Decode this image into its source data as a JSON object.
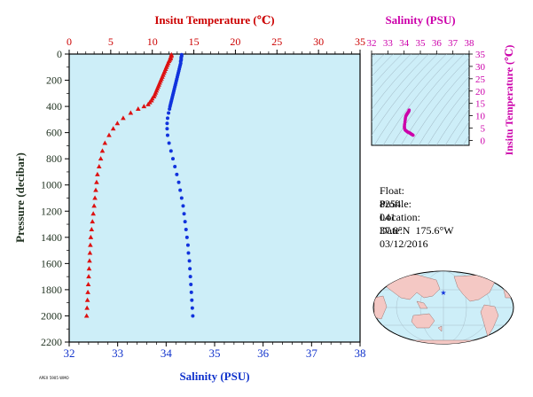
{
  "float_info": {
    "float_label": "Float:",
    "float_value": "8254",
    "profile_label": "Profile:",
    "profile_value": "041",
    "location_label": "Location:",
    "location_value": "37.8°N  175.6°W",
    "date_label": "Date:",
    "date_value": "03/12/2016"
  },
  "footer_tag": "APEX 5905 WMO",
  "colors": {
    "plot_bg": "#cdeef8",
    "temperature": "#dd1111",
    "salinity": "#1133dd",
    "ts_magenta": "#cc00aa",
    "temp_axis_text": "#cc0000",
    "salinity_axis_text": "#1133cc",
    "pressure_axis_text": "#223322",
    "land": "#f4c8c4",
    "ocean": "#cdeef8"
  },
  "chart_data": [
    {
      "type": "scatter",
      "name": "profile",
      "xlabel_bottom": "Salinity (PSU)",
      "xlabel_top": "Insitu Temperature (℃)",
      "ylabel": "Pressure (decibar)",
      "salinity_ticks": [
        "32",
        "33",
        "34",
        "35",
        "36",
        "37",
        "38"
      ],
      "temperature_ticks": [
        "0",
        "5",
        "10",
        "15",
        "20",
        "25",
        "30",
        "35"
      ],
      "pressure_ticks": [
        "0",
        "200",
        "400",
        "600",
        "800",
        "1000",
        "1200",
        "1400",
        "1600",
        "1800",
        "2000",
        "2200"
      ],
      "xlim_salinity": [
        32,
        38
      ],
      "xlim_temperature": [
        0,
        35
      ],
      "ylim_pressure": [
        2200,
        0
      ],
      "series": [
        {
          "name": "Temperature",
          "marker": "triangle",
          "x_is": "temperature",
          "points": [
            [
              12.3,
              5
            ],
            [
              12.3,
              15
            ],
            [
              12.2,
              25
            ],
            [
              12.2,
              35
            ],
            [
              12.1,
              45
            ],
            [
              12.0,
              55
            ],
            [
              11.9,
              70
            ],
            [
              11.8,
              85
            ],
            [
              11.7,
              100
            ],
            [
              11.6,
              115
            ],
            [
              11.5,
              130
            ],
            [
              11.4,
              145
            ],
            [
              11.3,
              160
            ],
            [
              11.2,
              175
            ],
            [
              11.1,
              190
            ],
            [
              11.0,
              205
            ],
            [
              10.9,
              220
            ],
            [
              10.8,
              235
            ],
            [
              10.7,
              250
            ],
            [
              10.6,
              265
            ],
            [
              10.5,
              280
            ],
            [
              10.4,
              295
            ],
            [
              10.3,
              310
            ],
            [
              10.2,
              325
            ],
            [
              10.0,
              340
            ],
            [
              9.9,
              355
            ],
            [
              9.7,
              370
            ],
            [
              9.5,
              385
            ],
            [
              9.0,
              400
            ],
            [
              8.3,
              420
            ],
            [
              7.4,
              450
            ],
            [
              6.5,
              490
            ],
            [
              5.8,
              530
            ],
            [
              5.3,
              570
            ],
            [
              4.8,
              620
            ],
            [
              4.3,
              680
            ],
            [
              4.0,
              740
            ],
            [
              3.8,
              800
            ],
            [
              3.6,
              860
            ],
            [
              3.4,
              920
            ],
            [
              3.3,
              980
            ],
            [
              3.2,
              1040
            ],
            [
              3.1,
              1100
            ],
            [
              3.0,
              1160
            ],
            [
              2.9,
              1220
            ],
            [
              2.8,
              1280
            ],
            [
              2.7,
              1340
            ],
            [
              2.6,
              1400
            ],
            [
              2.55,
              1460
            ],
            [
              2.5,
              1520
            ],
            [
              2.45,
              1580
            ],
            [
              2.4,
              1640
            ],
            [
              2.35,
              1700
            ],
            [
              2.3,
              1760
            ],
            [
              2.25,
              1820
            ],
            [
              2.2,
              1880
            ],
            [
              2.15,
              1940
            ],
            [
              2.1,
              2000
            ]
          ]
        },
        {
          "name": "Salinity",
          "marker": "circle",
          "x_is": "salinity",
          "points": [
            [
              34.32,
              5
            ],
            [
              34.32,
              15
            ],
            [
              34.31,
              25
            ],
            [
              34.31,
              35
            ],
            [
              34.31,
              45
            ],
            [
              34.3,
              55
            ],
            [
              34.3,
              70
            ],
            [
              34.29,
              85
            ],
            [
              34.28,
              100
            ],
            [
              34.27,
              115
            ],
            [
              34.26,
              130
            ],
            [
              34.25,
              145
            ],
            [
              34.24,
              160
            ],
            [
              34.23,
              175
            ],
            [
              34.22,
              190
            ],
            [
              34.21,
              205
            ],
            [
              34.2,
              220
            ],
            [
              34.19,
              235
            ],
            [
              34.18,
              250
            ],
            [
              34.17,
              265
            ],
            [
              34.16,
              280
            ],
            [
              34.15,
              295
            ],
            [
              34.14,
              310
            ],
            [
              34.13,
              325
            ],
            [
              34.12,
              340
            ],
            [
              34.11,
              355
            ],
            [
              34.1,
              370
            ],
            [
              34.09,
              385
            ],
            [
              34.08,
              400
            ],
            [
              34.07,
              420
            ],
            [
              34.05,
              450
            ],
            [
              34.03,
              490
            ],
            [
              34.02,
              530
            ],
            [
              34.02,
              570
            ],
            [
              34.03,
              620
            ],
            [
              34.06,
              680
            ],
            [
              34.1,
              740
            ],
            [
              34.14,
              800
            ],
            [
              34.18,
              860
            ],
            [
              34.22,
              920
            ],
            [
              34.26,
              980
            ],
            [
              34.29,
              1040
            ],
            [
              34.32,
              1100
            ],
            [
              34.35,
              1160
            ],
            [
              34.37,
              1220
            ],
            [
              34.39,
              1280
            ],
            [
              34.41,
              1340
            ],
            [
              34.43,
              1400
            ],
            [
              34.45,
              1460
            ],
            [
              34.46,
              1520
            ],
            [
              34.48,
              1580
            ],
            [
              34.49,
              1640
            ],
            [
              34.5,
              1700
            ],
            [
              34.51,
              1760
            ],
            [
              34.52,
              1820
            ],
            [
              34.53,
              1880
            ],
            [
              34.54,
              1940
            ],
            [
              34.55,
              2000
            ]
          ]
        }
      ]
    },
    {
      "type": "scatter",
      "name": "ts_diagram",
      "xlabel": "Salinity (PSU)",
      "ylabel": "Insitu Temperature (℃)",
      "x_ticks": [
        "32",
        "33",
        "34",
        "35",
        "36",
        "37",
        "38"
      ],
      "y_ticks": [
        "0",
        "5",
        "10",
        "15",
        "20",
        "25",
        "30",
        "35"
      ],
      "xlim": [
        32,
        38
      ],
      "ylim": [
        -2,
        35
      ],
      "points": [
        [
          34.31,
          12.3
        ],
        [
          34.3,
          12.0
        ],
        [
          34.28,
          11.7
        ],
        [
          34.26,
          11.5
        ],
        [
          34.24,
          11.3
        ],
        [
          34.22,
          11.1
        ],
        [
          34.2,
          10.9
        ],
        [
          34.18,
          10.7
        ],
        [
          34.16,
          10.5
        ],
        [
          34.14,
          10.3
        ],
        [
          34.12,
          10.0
        ],
        [
          34.1,
          9.7
        ],
        [
          34.08,
          9.0
        ],
        [
          34.07,
          8.3
        ],
        [
          34.05,
          7.4
        ],
        [
          34.03,
          6.5
        ],
        [
          34.02,
          5.8
        ],
        [
          34.02,
          5.3
        ],
        [
          34.03,
          4.8
        ],
        [
          34.06,
          4.3
        ],
        [
          34.1,
          4.0
        ],
        [
          34.14,
          3.8
        ],
        [
          34.18,
          3.6
        ],
        [
          34.22,
          3.4
        ],
        [
          34.26,
          3.3
        ],
        [
          34.29,
          3.2
        ],
        [
          34.32,
          3.1
        ],
        [
          34.35,
          3.0
        ],
        [
          34.37,
          2.9
        ],
        [
          34.4,
          2.8
        ],
        [
          34.43,
          2.6
        ],
        [
          34.46,
          2.5
        ],
        [
          34.49,
          2.4
        ],
        [
          34.52,
          2.25
        ],
        [
          34.55,
          2.1
        ]
      ]
    }
  ],
  "map": {
    "star_marker": "float-location-star"
  }
}
